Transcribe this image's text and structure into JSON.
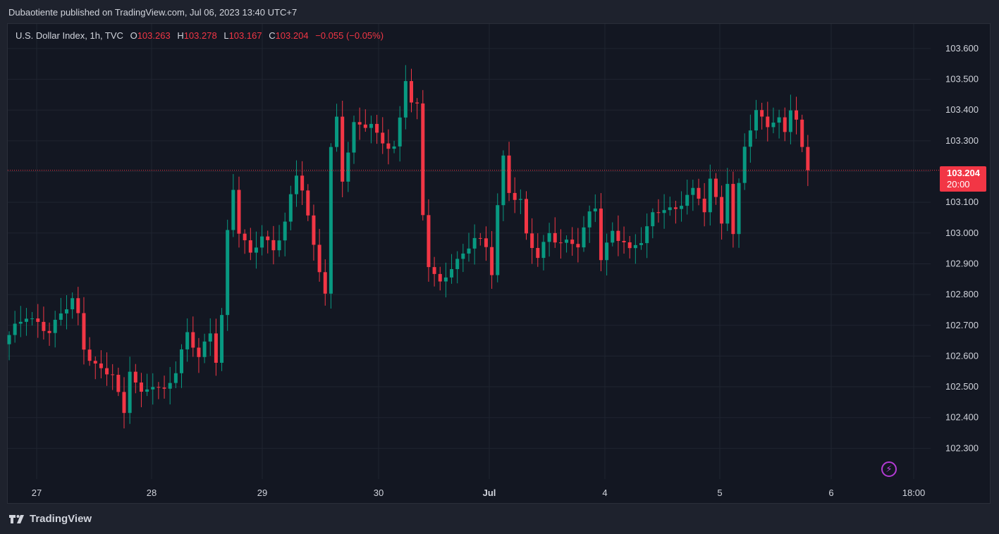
{
  "header": {
    "published": "Dubaotiente published on TradingView.com, Jul 06, 2023 13:40 UTC+7"
  },
  "legend": {
    "symbol": "U.S. Dollar Index, 1h, TVC",
    "o_label": "O",
    "o": "103.263",
    "h_label": "H",
    "h": "103.278",
    "l_label": "L",
    "l": "103.167",
    "c_label": "C",
    "c": "103.204",
    "change": "−0.055 (−0.05%)"
  },
  "price_tag": {
    "price": "103.204",
    "countdown": "20:00"
  },
  "brand": {
    "name": "TradingView"
  },
  "colors": {
    "up": "#089981",
    "down": "#f23645",
    "background": "#131722",
    "grid": "#1f2430",
    "text": "#d1d4dc"
  },
  "icons": {
    "bolt": "lightning-icon",
    "logo": "tradingview-logo-icon"
  },
  "chart_data": {
    "type": "candlestick",
    "interval": "1h",
    "ylim": [
      102.2,
      103.68
    ],
    "y_ticks": [
      "103.600",
      "103.500",
      "103.400",
      "103.300",
      "103.200",
      "103.100",
      "103.000",
      "102.900",
      "102.800",
      "102.700",
      "102.600",
      "102.500",
      "102.400",
      "102.300"
    ],
    "x_ticks": [
      "27",
      "28",
      "29",
      "30",
      "Jul",
      "4",
      "5",
      "6",
      "18:00"
    ],
    "last_price": 103.204,
    "path_points": [
      [
        0,
        102.66
      ],
      [
        3,
        102.73
      ],
      [
        7,
        102.69
      ],
      [
        9,
        102.73
      ],
      [
        11,
        102.78
      ],
      [
        12,
        102.72
      ],
      [
        13,
        102.62
      ],
      [
        16,
        102.56
      ],
      [
        18,
        102.55
      ],
      [
        19,
        102.47
      ],
      [
        20,
        102.4
      ],
      [
        21,
        102.55
      ],
      [
        23,
        102.47
      ],
      [
        25,
        102.52
      ],
      [
        27,
        102.49
      ],
      [
        29,
        102.55
      ],
      [
        31,
        102.66
      ],
      [
        33,
        102.6
      ],
      [
        35,
        102.68
      ],
      [
        36,
        102.6
      ],
      [
        37,
        102.74
      ],
      [
        38,
        103.0
      ],
      [
        39,
        103.14
      ],
      [
        40,
        103.0
      ],
      [
        42,
        102.92
      ],
      [
        44,
        103.0
      ],
      [
        46,
        102.95
      ],
      [
        48,
        103.04
      ],
      [
        50,
        103.18
      ],
      [
        51,
        103.14
      ],
      [
        53,
        102.95
      ],
      [
        55,
        102.82
      ],
      [
        56,
        103.28
      ],
      [
        57,
        103.38
      ],
      [
        58,
        103.18
      ],
      [
        60,
        103.34
      ],
      [
        63,
        103.35
      ],
      [
        64,
        103.32
      ],
      [
        67,
        103.28
      ],
      [
        68,
        103.37
      ],
      [
        69,
        103.5
      ],
      [
        70,
        103.42
      ],
      [
        71,
        103.4
      ],
      [
        72,
        103.05
      ],
      [
        73,
        102.9
      ],
      [
        75,
        102.84
      ],
      [
        77,
        102.9
      ],
      [
        79,
        102.92
      ],
      [
        81,
        102.98
      ],
      [
        83,
        102.95
      ],
      [
        84,
        102.88
      ],
      [
        85,
        103.1
      ],
      [
        86,
        103.25
      ],
      [
        87,
        103.14
      ],
      [
        89,
        103.1
      ],
      [
        90,
        102.98
      ],
      [
        92,
        102.92
      ],
      [
        94,
        103.0
      ],
      [
        96,
        102.98
      ],
      [
        99,
        102.96
      ],
      [
        101,
        103.05
      ],
      [
        102,
        103.08
      ],
      [
        103,
        102.92
      ],
      [
        105,
        103.01
      ],
      [
        107,
        102.98
      ],
      [
        108,
        102.94
      ],
      [
        110,
        102.97
      ],
      [
        112,
        103.05
      ],
      [
        114,
        103.09
      ],
      [
        116,
        103.08
      ],
      [
        118,
        103.13
      ],
      [
        119,
        103.13
      ],
      [
        121,
        103.07
      ],
      [
        122,
        103.17
      ],
      [
        124,
        103.04
      ],
      [
        125,
        103.18
      ],
      [
        126,
        103.0
      ],
      [
        127,
        103.16
      ],
      [
        128,
        103.29
      ],
      [
        130,
        103.38
      ],
      [
        132,
        103.35
      ],
      [
        134,
        103.37
      ],
      [
        135,
        103.34
      ],
      [
        136,
        103.42
      ],
      [
        137,
        103.37
      ],
      [
        138,
        103.27
      ],
      [
        139,
        103.204
      ]
    ]
  }
}
